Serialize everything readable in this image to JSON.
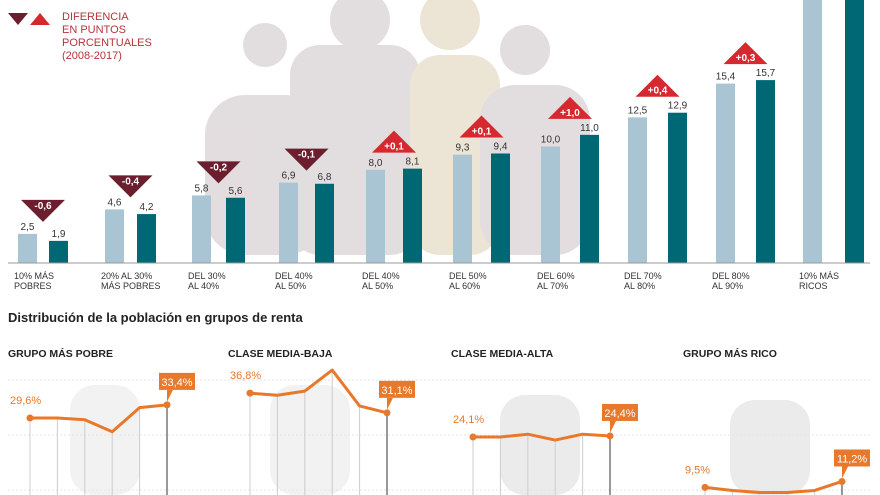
{
  "legend": {
    "lines": [
      "DIFERENCIA",
      "EN PUNTOS",
      "PORCENTUALES",
      "(2008-2017)"
    ],
    "down_color": "#6b1e2e",
    "up_color": "#d6282f"
  },
  "chart_data": [
    {
      "type": "bar",
      "categories": [
        [
          "10% MÁS",
          "POBRES"
        ],
        [
          "20% AL 30%",
          "MÁS POBRES"
        ],
        [
          "DEL 30%",
          "AL 40%"
        ],
        [
          "DEL 40%",
          "AL 50%"
        ],
        [
          "DEL 40%",
          "AL 50%"
        ],
        [
          "DEL 50%",
          "AL 60%"
        ],
        [
          "DEL 60%",
          "AL 70%"
        ],
        [
          "DEL 70%",
          "AL 80%"
        ],
        [
          "DEL 80%",
          "AL 90%"
        ],
        [
          "10% MÁS",
          "RICOS"
        ]
      ],
      "series": [
        {
          "color": "#a9c4d2",
          "values": [
            2.5,
            4.6,
            5.8,
            6.9,
            8.0,
            9.3,
            10.0,
            12.5,
            15.4,
            null
          ],
          "labels": [
            "2,5",
            "4,6",
            "5,8",
            "6,9",
            "8,0",
            "9,3",
            "10,0",
            "12,5",
            "15,4",
            ""
          ]
        },
        {
          "color": "#006874",
          "values": [
            1.9,
            4.2,
            5.6,
            6.8,
            8.1,
            9.4,
            11.0,
            12.9,
            15.7,
            null
          ],
          "labels": [
            "1,9",
            "4,2",
            "5,6",
            "6,8",
            "8,1",
            "9,4",
            "11,0",
            "12,9",
            "15,7",
            ""
          ]
        }
      ],
      "differences": [
        "-0,6",
        "-0,4",
        "-0,2",
        "-0,1",
        "+0,1",
        "+0,1",
        "+1,0",
        "+0,4",
        "+0,3",
        ""
      ],
      "note": "",
      "grid": false
    },
    {
      "type": "line",
      "title": "Distribución de la población en grupos de renta",
      "color": "#e8782a",
      "panels": [
        {
          "title": "GRUPO MÁS POBRE",
          "values": [
            29.6,
            29.6,
            29.1,
            25.6,
            32.6,
            33.4
          ],
          "start_label": "29,6%",
          "end_label": "33,4%"
        },
        {
          "title": "CLASE MEDIA-BAJA",
          "values": [
            36.8,
            36.2,
            37.4,
            43.5,
            33.1,
            31.1
          ],
          "start_label": "36,8%",
          "end_label": "31,1%"
        },
        {
          "title": "CLASE MEDIA-ALTA",
          "values": [
            24.1,
            24.1,
            24.9,
            23.2,
            24.9,
            24.4
          ],
          "start_label": "24,1%",
          "end_label": "24,4%"
        },
        {
          "title": "GRUPO MÁS RICO",
          "values": [
            9.5,
            8.6,
            8.0,
            8.0,
            8.6,
            11.2
          ],
          "start_label": "9,5%",
          "end_label": "11,2%"
        }
      ]
    }
  ]
}
